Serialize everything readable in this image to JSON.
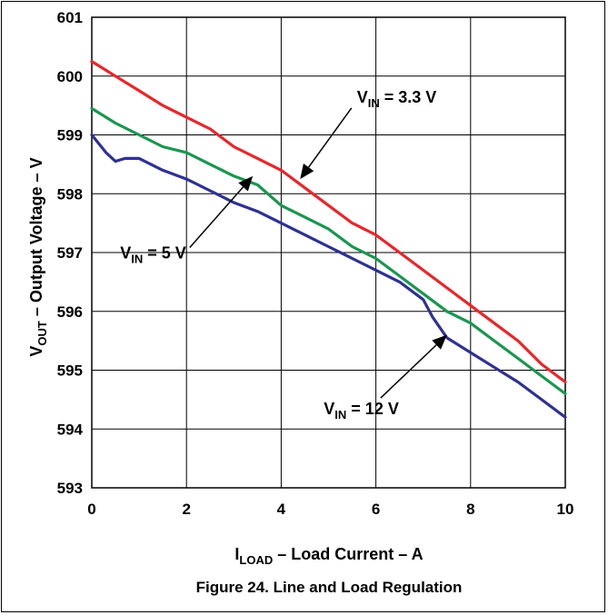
{
  "chart_data": {
    "type": "line",
    "caption": "Figure 24. Line and Load Regulation",
    "xlabel": {
      "main": "I",
      "sub": "LOAD",
      "rest": " – Load Current – A"
    },
    "ylabel": {
      "main": "V",
      "sub": "OUT",
      "rest": " – Output Voltage – V"
    },
    "xlim": [
      0,
      10
    ],
    "ylim": [
      593,
      601
    ],
    "xticks": [
      "0",
      "2",
      "4",
      "6",
      "8",
      "10"
    ],
    "yticks": [
      "593",
      "594",
      "595",
      "596",
      "597",
      "598",
      "599",
      "600",
      "601"
    ],
    "grid": true,
    "series": [
      {
        "name": "V_IN = 3.3 V",
        "label": {
          "main": "V",
          "sub": "IN",
          "rest": " = 3.3 V"
        },
        "color": "#e8262a",
        "x": [
          0,
          0.5,
          1,
          1.5,
          2,
          2.5,
          3,
          3.5,
          4,
          4.5,
          5,
          5.5,
          6,
          6.5,
          7,
          7.5,
          8,
          8.5,
          9,
          9.5,
          10
        ],
        "y": [
          600.25,
          600.0,
          599.75,
          599.5,
          599.3,
          599.1,
          598.8,
          598.6,
          598.4,
          598.1,
          597.8,
          597.5,
          597.3,
          597.0,
          596.7,
          596.4,
          596.1,
          595.8,
          595.5,
          595.1,
          594.8
        ]
      },
      {
        "name": "V_IN = 5 V",
        "label": {
          "main": "V",
          "sub": "IN",
          "rest": " = 5 V"
        },
        "color": "#1a9650",
        "x": [
          0,
          0.5,
          1,
          1.5,
          2,
          2.5,
          3,
          3.5,
          4,
          4.5,
          5,
          5.5,
          6,
          6.5,
          7,
          7.5,
          8,
          8.5,
          9,
          9.5,
          10
        ],
        "y": [
          599.45,
          599.2,
          599.0,
          598.8,
          598.7,
          598.5,
          598.3,
          598.15,
          597.8,
          597.6,
          597.4,
          597.1,
          596.9,
          596.6,
          596.3,
          596.0,
          595.8,
          595.5,
          595.2,
          594.9,
          594.6
        ]
      },
      {
        "name": "V_IN = 12 V",
        "label": {
          "main": "V",
          "sub": "IN",
          "rest": " = 12 V"
        },
        "color": "#2e3192",
        "x": [
          0,
          0.3,
          0.5,
          0.7,
          1,
          1.5,
          2,
          2.5,
          3,
          3.5,
          4,
          4.5,
          5,
          5.5,
          6,
          6.5,
          7,
          7.2,
          7.5,
          8,
          8.5,
          9,
          9.5,
          10
        ],
        "y": [
          599.0,
          598.7,
          598.55,
          598.6,
          598.6,
          598.4,
          598.25,
          598.05,
          597.85,
          597.7,
          597.5,
          597.3,
          597.1,
          596.9,
          596.7,
          596.5,
          596.2,
          595.9,
          595.55,
          595.3,
          595.05,
          594.8,
          594.5,
          594.2
        ]
      }
    ],
    "annotations": [
      {
        "series": 0,
        "text_anchor": [
          5.6,
          599.55
        ],
        "arrow_to": [
          4.4,
          598.25
        ]
      },
      {
        "series": 1,
        "text_anchor": [
          0.6,
          596.9
        ],
        "arrow_to": [
          3.4,
          598.3
        ]
      },
      {
        "series": 2,
        "text_anchor": [
          4.9,
          594.25
        ],
        "arrow_to": [
          7.5,
          595.6
        ]
      }
    ]
  }
}
